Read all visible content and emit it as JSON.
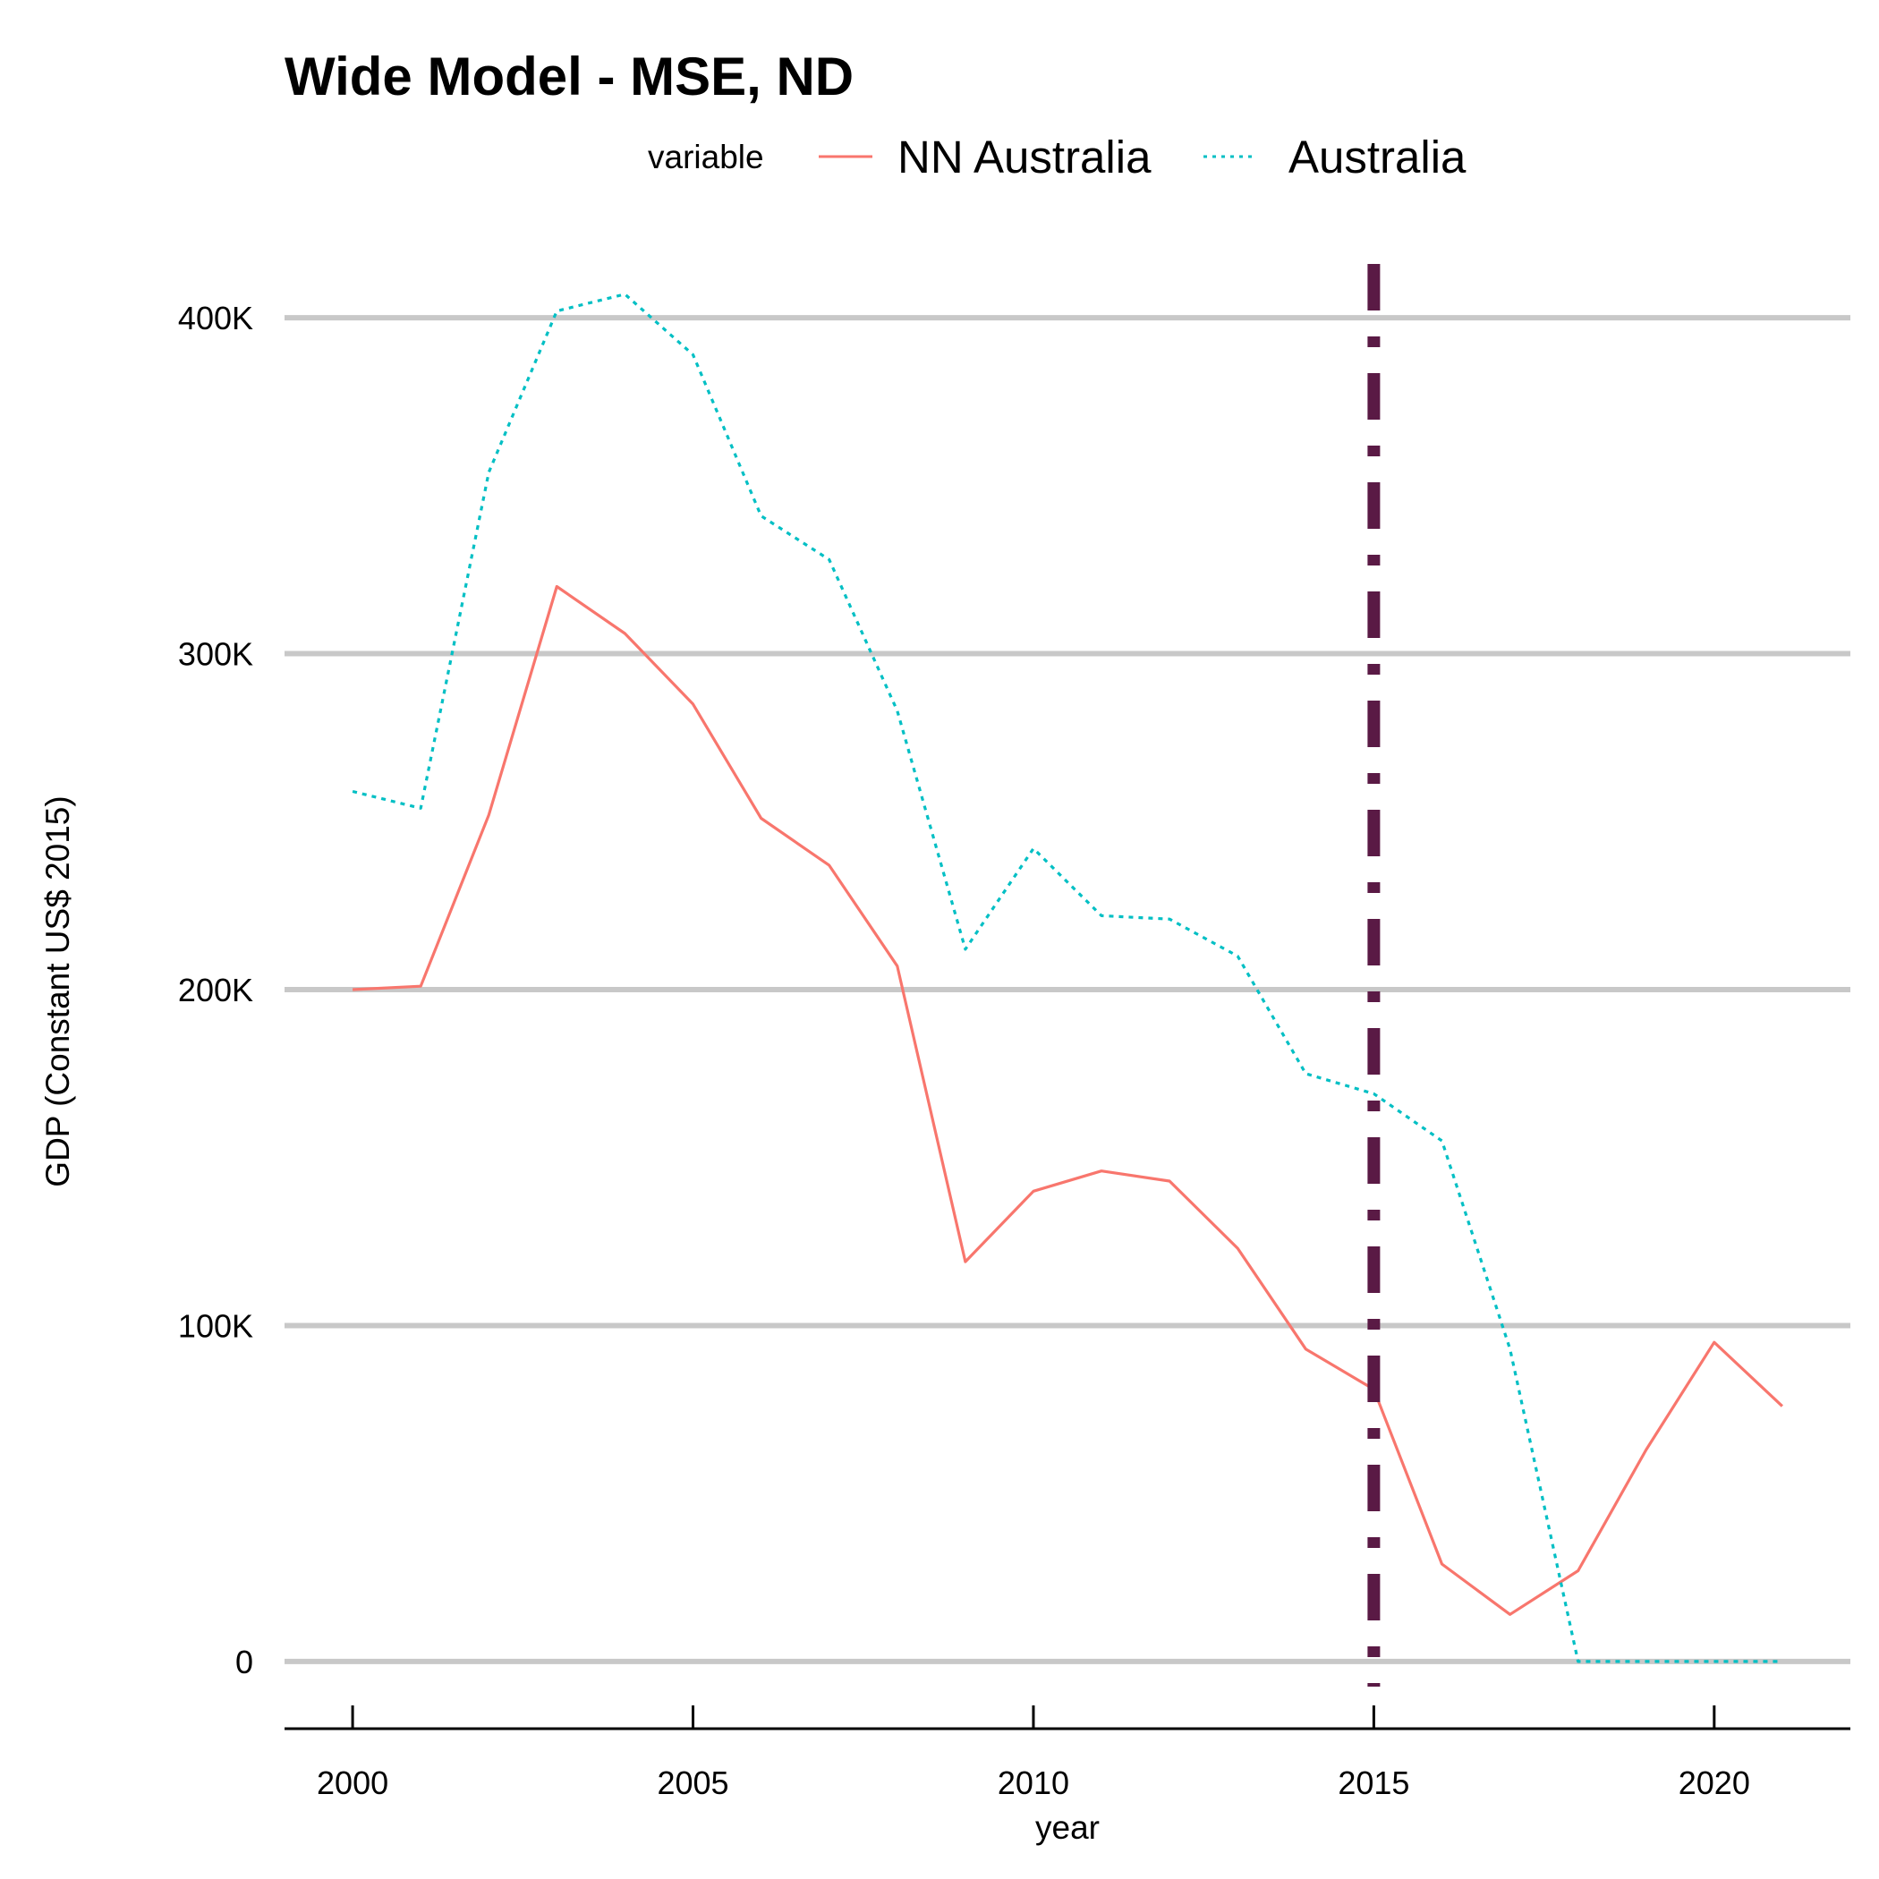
{
  "chart_data": {
    "type": "line",
    "title": "Wide Model - MSE, ND",
    "xlabel": "year",
    "ylabel": "GDP (Constant US$ 2015)",
    "xlim": [
      1999,
      2022
    ],
    "ylim": [
      -20000,
      420000
    ],
    "x_ticks": [
      2000,
      2005,
      2010,
      2015,
      2020
    ],
    "x_tick_labels": [
      "2000",
      "2005",
      "2010",
      "2015",
      "2020"
    ],
    "y_ticks": [
      0,
      100000,
      200000,
      300000,
      400000
    ],
    "y_tick_labels": [
      "0",
      "100K",
      "200K",
      "300K",
      "400K"
    ],
    "grid": "horizontal",
    "legend": {
      "title": "variable",
      "position": "top"
    },
    "x": [
      2000,
      2001,
      2002,
      2003,
      2004,
      2005,
      2006,
      2007,
      2008,
      2009,
      2010,
      2011,
      2012,
      2013,
      2014,
      2015,
      2016,
      2017,
      2018,
      2019,
      2020,
      2021
    ],
    "series": [
      {
        "name": "NN Australia",
        "color": "#F8766D",
        "dash": "solid",
        "values": [
          200000,
          201000,
          252000,
          320000,
          306000,
          285000,
          251000,
          237000,
          207000,
          119000,
          140000,
          146000,
          143000,
          123000,
          93000,
          81000,
          29000,
          14000,
          27000,
          63000,
          95000,
          76000
        ]
      },
      {
        "name": "Australia",
        "color": "#00BFC4",
        "dash": "dotted",
        "values": [
          259000,
          254000,
          354000,
          402000,
          407000,
          389000,
          341000,
          328000,
          283000,
          212000,
          242000,
          222000,
          221000,
          210000,
          175000,
          169000,
          155000,
          93000,
          0,
          0,
          0,
          0
        ]
      }
    ],
    "annotations": [
      {
        "type": "vline",
        "x": 2015,
        "color": "#5A1A45",
        "style": "dashdot"
      }
    ]
  }
}
